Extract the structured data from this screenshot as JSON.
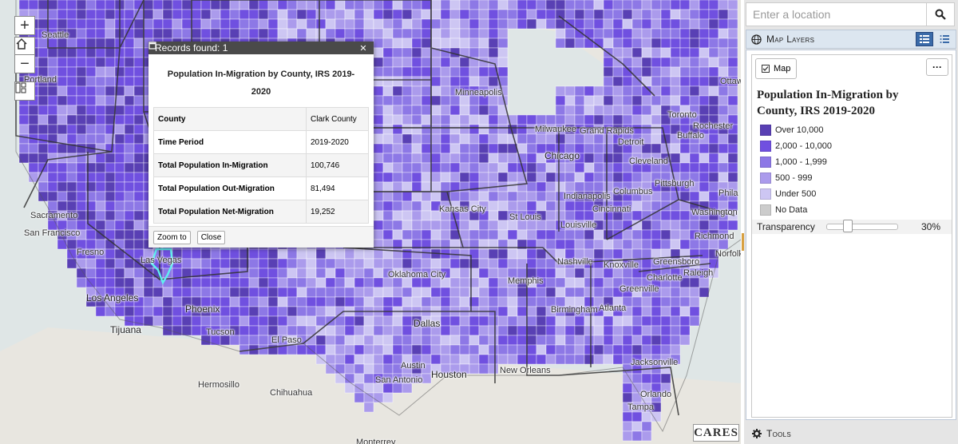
{
  "map": {
    "attribution": "CARES",
    "city_labels": [
      {
        "name": "Seattle",
        "big": false
      },
      {
        "name": "Portland",
        "big": false
      },
      {
        "name": "Sacramento",
        "big": false
      },
      {
        "name": "San Francisco",
        "big": false
      },
      {
        "name": "Fresno",
        "big": false
      },
      {
        "name": "Las Vegas",
        "big": false
      },
      {
        "name": "Los Angeles",
        "big": true
      },
      {
        "name": "Tijuana",
        "big": true
      },
      {
        "name": "Phoenix",
        "big": true
      },
      {
        "name": "Tucson",
        "big": false
      },
      {
        "name": "El Paso",
        "big": false
      },
      {
        "name": "Hermosillo",
        "big": false
      },
      {
        "name": "Chihuahua",
        "big": false
      },
      {
        "name": "Monterrey",
        "big": false
      },
      {
        "name": "Minneapolis",
        "big": false
      },
      {
        "name": "Milwaukee",
        "big": false
      },
      {
        "name": "Grand Rapids",
        "big": false
      },
      {
        "name": "Detroit",
        "big": false
      },
      {
        "name": "Chicago",
        "big": true
      },
      {
        "name": "Cleveland",
        "big": false
      },
      {
        "name": "Pittsburgh",
        "big": false
      },
      {
        "name": "Columbus",
        "big": false
      },
      {
        "name": "Indianapolis",
        "big": false
      },
      {
        "name": "Cincinnati",
        "big": false
      },
      {
        "name": "Kansas City",
        "big": false
      },
      {
        "name": "St Louis",
        "big": false
      },
      {
        "name": "Louisville",
        "big": false
      },
      {
        "name": "Oklahoma City",
        "big": false
      },
      {
        "name": "Nashville",
        "big": false
      },
      {
        "name": "Knoxville",
        "big": false
      },
      {
        "name": "Memphis",
        "big": false
      },
      {
        "name": "Greensboro",
        "big": false
      },
      {
        "name": "Charlotte",
        "big": false
      },
      {
        "name": "Raleigh",
        "big": false
      },
      {
        "name": "Greenville",
        "big": false
      },
      {
        "name": "Birmingham",
        "big": false
      },
      {
        "name": "Atlanta",
        "big": false
      },
      {
        "name": "Dallas",
        "big": true
      },
      {
        "name": "Austin",
        "big": false
      },
      {
        "name": "San Antonio",
        "big": false
      },
      {
        "name": "Houston",
        "big": true
      },
      {
        "name": "New Orleans",
        "big": false
      },
      {
        "name": "Jacksonville",
        "big": false
      },
      {
        "name": "Orlando",
        "big": false
      },
      {
        "name": "Tampa",
        "big": false
      },
      {
        "name": "Toronto",
        "big": false
      },
      {
        "name": "Rochester",
        "big": false
      },
      {
        "name": "Buffalo",
        "big": false
      },
      {
        "name": "Washington",
        "big": false
      },
      {
        "name": "Richmond",
        "big": false
      },
      {
        "name": "Norfolk",
        "big": false
      },
      {
        "name": "Phila",
        "big": false
      },
      {
        "name": "Ottawa",
        "big": false
      }
    ],
    "colors": {
      "water": "#dfe6e6",
      "land": "#e8e6e0",
      "border": "#333333",
      "highlight": "#5ff0f0"
    }
  },
  "popup": {
    "header": "Records found: 1",
    "title": "Population In-Migration by County, IRS 2019-2020",
    "rows": [
      {
        "label": "County",
        "value": "Clark County"
      },
      {
        "label": "Time Period",
        "value": "2019-2020"
      },
      {
        "label": "Total Population In-Migration",
        "value": "100,746"
      },
      {
        "label": "Total Population Out-Migration",
        "value": "81,494"
      },
      {
        "label": "Total Population Net-Migration",
        "value": "19,252"
      }
    ],
    "zoom_label": "Zoom to",
    "close_label": "Close"
  },
  "search": {
    "placeholder": "Enter a location"
  },
  "layers": {
    "heading": "Map Layers",
    "tab_label": "Map",
    "layer_title": "Population In-Migration by County, IRS 2019-2020",
    "legend": [
      {
        "label": "Over 10,000",
        "color": "#5940b4"
      },
      {
        "label": "2,000 - 10,000",
        "color": "#7050e0"
      },
      {
        "label": "1,000 - 1,999",
        "color": "#8d78e6"
      },
      {
        "label": "500 - 999",
        "color": "#ab9bec"
      },
      {
        "label": "Under 500",
        "color": "#cdc6f3"
      },
      {
        "label": "No Data",
        "color": "#cccccc"
      }
    ],
    "transparency_label": "Transparency",
    "transparency_value": "30%",
    "transparency_fraction": 0.3
  },
  "tools": {
    "label": "Tools"
  }
}
